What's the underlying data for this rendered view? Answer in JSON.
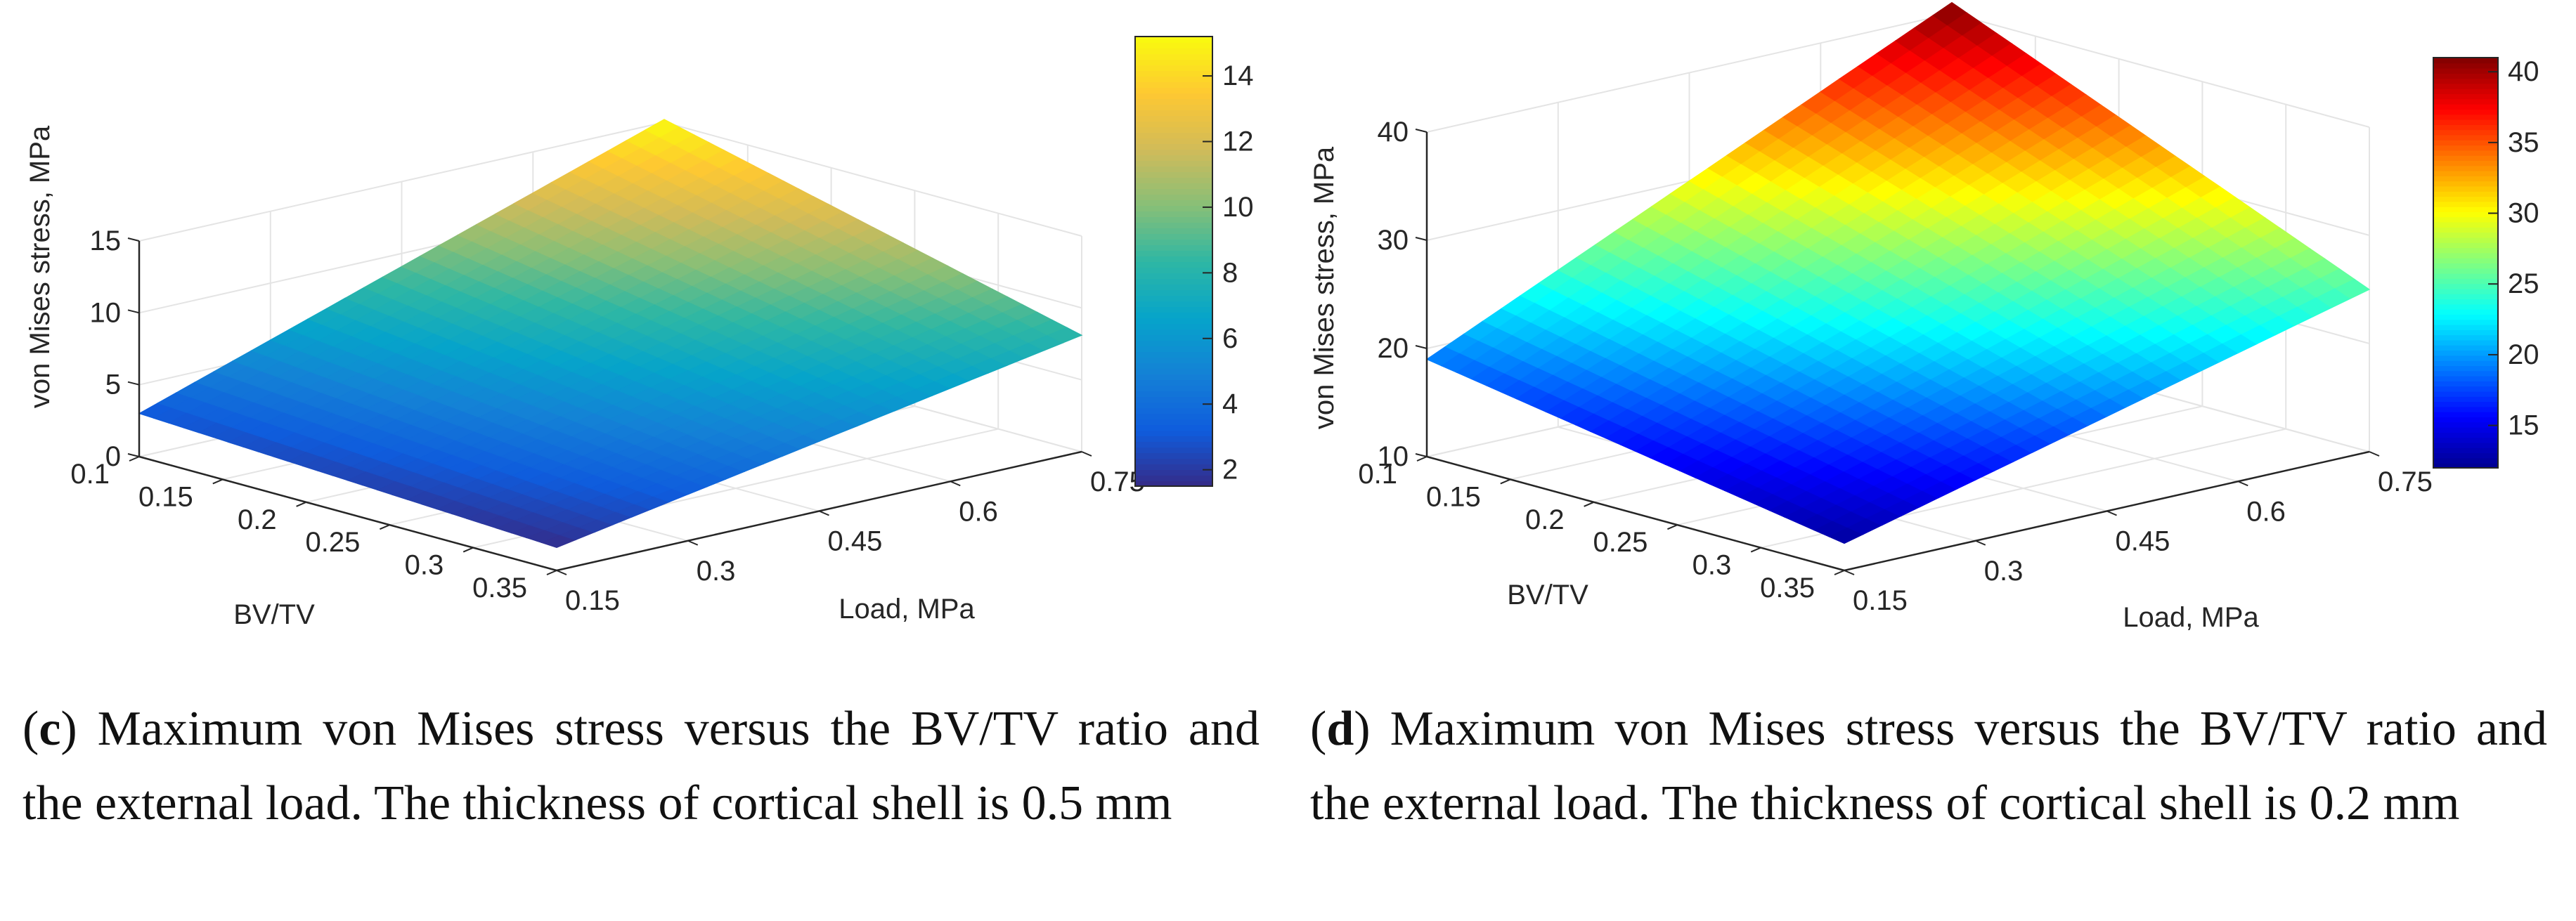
{
  "chart_data": [
    {
      "panel": "c",
      "type": "surface",
      "caption_letter": "c",
      "caption_text": "Maximum von Mises stress versus the BV/TV ratio and the external load. The thickness of cortical shell is 0.5 mm",
      "xlabel": "BV/TV",
      "ylabel": "Load, MPa",
      "zlabel": "von Mises stress, MPa",
      "x_ticks": [
        "0.1",
        "0.15",
        "0.2",
        "0.25",
        "0.3",
        "0.35"
      ],
      "y_ticks": [
        "0.15",
        "0.3",
        "0.45",
        "0.6",
        "0.75"
      ],
      "z_ticks": [
        "0",
        "5",
        "10",
        "15"
      ],
      "xlim": [
        0.1,
        0.35
      ],
      "ylim": [
        0.15,
        0.75
      ],
      "zlim": [
        0,
        15
      ],
      "colormap": "parula",
      "colorbar_ticks": [
        "2",
        "4",
        "6",
        "8",
        "10",
        "12",
        "14"
      ],
      "colorbar_range": [
        1.5,
        15.2
      ],
      "corner_values": {
        "bv_min_load_min": 3.0,
        "bv_max_load_min": 1.6,
        "bv_min_load_max": 15.2,
        "bv_max_load_max": 8.1
      },
      "palette": [
        "#352a87",
        "#0f5cdd",
        "#1481d6",
        "#06a4ca",
        "#2eb7a4",
        "#87bf77",
        "#d1bb59",
        "#fec832",
        "#f9fb0e"
      ]
    },
    {
      "panel": "d",
      "type": "surface",
      "caption_letter": "d",
      "caption_text": "Maximum von Mises stress versus the BV/TV ratio and the external load. The thickness of cortical shell is 0.2 mm",
      "xlabel": "BV/TV",
      "ylabel": "Load, MPa",
      "zlabel": "von Mises stress, MPa",
      "x_ticks": [
        "0.1",
        "0.15",
        "0.2",
        "0.25",
        "0.3",
        "0.35"
      ],
      "y_ticks": [
        "0.15",
        "0.3",
        "0.45",
        "0.6",
        "0.75"
      ],
      "z_ticks": [
        "10",
        "20",
        "30",
        "40"
      ],
      "xlim": [
        0.1,
        0.35
      ],
      "ylim": [
        0.15,
        0.75
      ],
      "zlim": [
        10,
        40
      ],
      "colormap": "jet",
      "colorbar_ticks": [
        "15",
        "20",
        "25",
        "30",
        "35",
        "40"
      ],
      "colorbar_range": [
        12,
        41
      ],
      "corner_values": {
        "bv_min_load_min": 19,
        "bv_max_load_min": 12.5,
        "bv_min_load_max": 41,
        "bv_max_load_max": 25
      },
      "palette": [
        "#00008f",
        "#0000ff",
        "#0080ff",
        "#00ffff",
        "#80ff80",
        "#ffff00",
        "#ff8000",
        "#ff0000",
        "#800000"
      ]
    }
  ]
}
